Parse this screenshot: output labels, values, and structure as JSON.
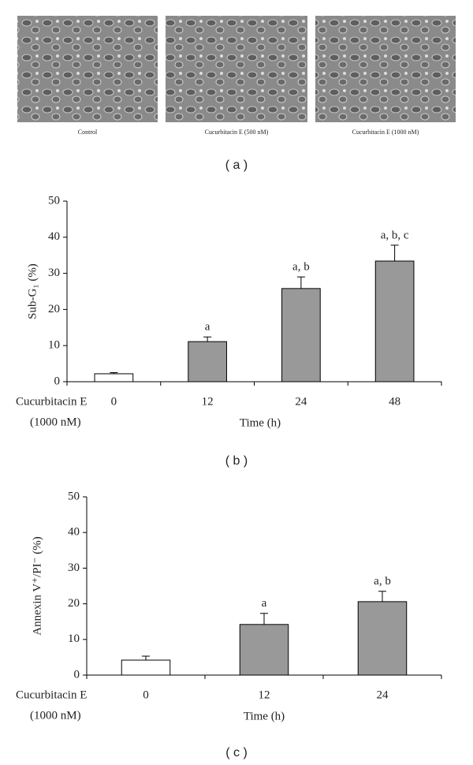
{
  "panel_a": {
    "captions": [
      "Control",
      "Cucurbitacin E (500 nM)",
      "Cucurbitacin E (1000 nM)"
    ],
    "panel_label": "( a )"
  },
  "chart_data": [
    {
      "type": "bar",
      "panel_label": "( b )",
      "y_label": "Sub-G₁ (%)",
      "x_label": "Time (h)",
      "treatment_label": "Cucurbitacin E",
      "treatment_dose": "(1000 nM)",
      "categories": [
        "0",
        "12",
        "24",
        "48"
      ],
      "values": [
        2.2,
        11.1,
        25.8,
        33.4
      ],
      "errors": [
        0.3,
        1.3,
        3.2,
        4.4
      ],
      "annotations": [
        null,
        "a",
        "a, b",
        "a, b, c"
      ],
      "colors": [
        "#ffffff",
        "#999999",
        "#999999",
        "#999999"
      ],
      "ylim": [
        0,
        50
      ],
      "yticks": [
        0,
        10,
        20,
        30,
        40,
        50
      ]
    },
    {
      "type": "bar",
      "panel_label": "( c )",
      "y_label": "Annexin V⁺/PI⁻ (%)",
      "x_label": "Time (h)",
      "treatment_label": "Cucurbitacin E",
      "treatment_dose": "(1000 nM)",
      "categories": [
        "0",
        "12",
        "24"
      ],
      "values": [
        4.2,
        14.2,
        20.6
      ],
      "errors": [
        1.1,
        3.1,
        2.9
      ],
      "annotations": [
        null,
        "a",
        "a, b"
      ],
      "colors": [
        "#ffffff",
        "#999999",
        "#999999"
      ],
      "ylim": [
        0,
        50
      ],
      "yticks": [
        0,
        10,
        20,
        30,
        40,
        50
      ]
    }
  ]
}
